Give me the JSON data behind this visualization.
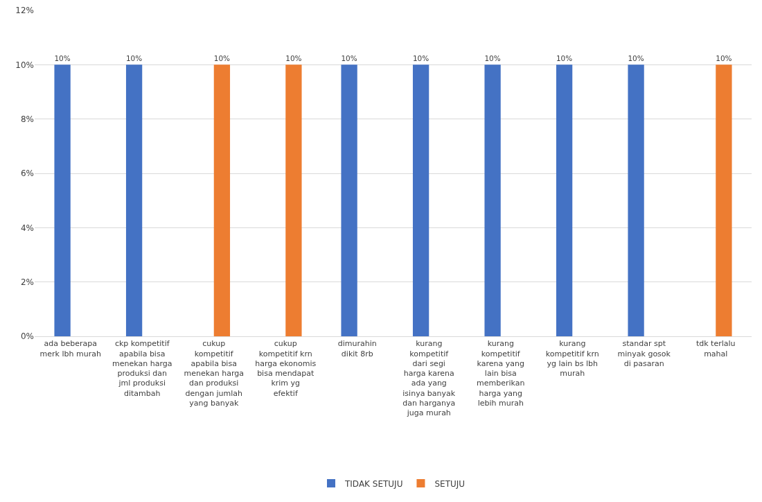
{
  "chart_data": {
    "type": "bar",
    "categories": [
      "ada beberapa merk lbh murah",
      "ckp kompetitif apabila bisa menekan harga produksi dan jml produksi ditambah",
      "cukup kompetitif apabila bisa menekan harga dan produksi dengan jumlah yang banyak",
      "cukup kompetitif krn harga ekonomis bisa mendapat krim yg efektif",
      "dimurahin dikit 8rb",
      "kurang kompetitif dari segi harga karena ada yang isinya banyak dan harganya juga murah",
      "kurang kompetitif karena yang lain bisa memberikan harga yang lebih murah",
      "kurang kompetitif krn yg lain bs lbh murah",
      "standar spt minyak gosok di pasaran",
      "tdk terlalu mahal"
    ],
    "series": [
      {
        "name": "TIDAK SETUJU",
        "color": "#4472c4",
        "values": [
          10,
          10,
          null,
          null,
          10,
          10,
          10,
          10,
          10,
          null
        ],
        "value_labels": [
          "10%",
          "10%",
          null,
          null,
          "10%",
          "10%",
          "10%",
          "10%",
          "10%",
          null
        ]
      },
      {
        "name": "SETUJU",
        "color": "#ed7d31",
        "values": [
          null,
          null,
          10,
          10,
          null,
          null,
          null,
          null,
          null,
          10
        ],
        "value_labels": [
          null,
          null,
          "10%",
          "10%",
          null,
          null,
          null,
          null,
          null,
          "10%"
        ]
      }
    ],
    "ylim": [
      0,
      12
    ],
    "yticks": [
      {
        "value": 0,
        "label": "0%"
      },
      {
        "value": 2,
        "label": "2%"
      },
      {
        "value": 4,
        "label": "4%"
      },
      {
        "value": 6,
        "label": "6%"
      },
      {
        "value": 8,
        "label": "8%"
      },
      {
        "value": 10,
        "label": "10%"
      },
      {
        "value": 12,
        "label": "12%"
      }
    ],
    "grid": "y",
    "legend": "bottom"
  }
}
